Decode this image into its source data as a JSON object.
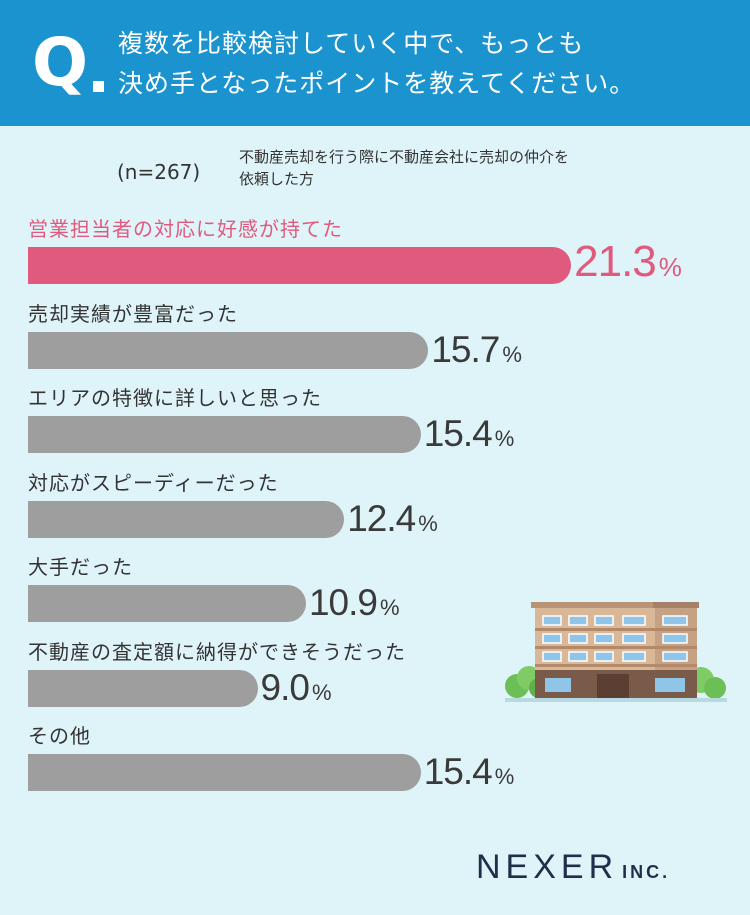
{
  "header": {
    "q_mark": "Q",
    "question_line1": "複数を比較検討していく中で、もっとも",
    "question_line2": "決め手となったポイントを教えてください。"
  },
  "sample": {
    "n_label": "(n=267)",
    "desc_line1": "不動産売却を行う際に不動産会社に売却の仲介を",
    "desc_line2": "依頼した方"
  },
  "colors": {
    "header_bg": "#1a93cf",
    "background": "#dff4f9",
    "highlight": "#e05a7d",
    "bar_default": "#9e9e9f"
  },
  "chart_data": {
    "type": "bar",
    "orientation": "horizontal",
    "title": "複数を比較検討していく中で、もっとも決め手となったポイントを教えてください。",
    "unit": "%",
    "xlim": [
      0,
      25
    ],
    "categories": [
      "営業担当者の対応に好感が持てた",
      "売却実績が豊富だった",
      "エリアの特徴に詳しいと思った",
      "対応がスピーディーだった",
      "大手だった",
      "不動産の査定額に納得ができそうだった",
      "その他"
    ],
    "values": [
      21.3,
      15.7,
      15.4,
      12.4,
      10.9,
      9.0,
      15.4
    ],
    "value_labels": [
      "21.3",
      "15.7",
      "15.4",
      "12.4",
      "10.9",
      "9.0",
      "15.4"
    ],
    "highlight_index": 0
  },
  "footer": {
    "brand": "NEXER",
    "suffix": "INC."
  }
}
